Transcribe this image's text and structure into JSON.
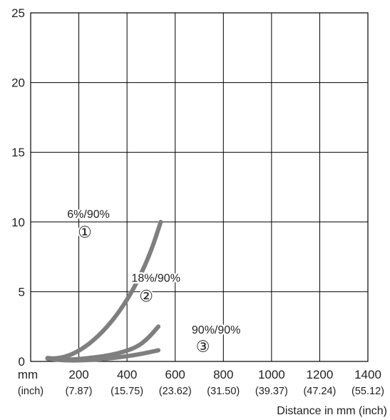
{
  "chart_data": {
    "type": "line",
    "xlabel": "Distance in mm (inch)",
    "ylabel": "",
    "x_unit_label": "mm",
    "x_sub_unit_label": "(inch)",
    "xlim": [
      0,
      1400
    ],
    "ylim": [
      0,
      25
    ],
    "grid": true,
    "x_ticks": [
      {
        "value": 200,
        "label": "200",
        "sublabel": "(7.87)"
      },
      {
        "value": 400,
        "label": "400",
        "sublabel": "(15.75)"
      },
      {
        "value": 600,
        "label": "600",
        "sublabel": "(23.62)"
      },
      {
        "value": 800,
        "label": "800",
        "sublabel": "(31.50)"
      },
      {
        "value": 1000,
        "label": "1000",
        "sublabel": "(39.37)"
      },
      {
        "value": 1200,
        "label": "1200",
        "sublabel": "(47.24)"
      },
      {
        "value": 1400,
        "label": "1400",
        "sublabel": "(55.12)"
      }
    ],
    "y_ticks": [
      {
        "value": 0,
        "label": "0"
      },
      {
        "value": 5,
        "label": "5"
      },
      {
        "value": 10,
        "label": "10"
      },
      {
        "value": 15,
        "label": "15"
      },
      {
        "value": 20,
        "label": "20"
      },
      {
        "value": 25,
        "label": "25"
      }
    ],
    "series": [
      {
        "name": "6%/90%",
        "marker": "①",
        "color": "#7f7f7f",
        "x": [
          70,
          100,
          150,
          200,
          250,
          300,
          350,
          400,
          450,
          500,
          540
        ],
        "y": [
          0.25,
          0.2,
          0.35,
          0.75,
          1.35,
          2.15,
          3.15,
          4.4,
          5.95,
          7.9,
          10.0
        ],
        "label_pos": {
          "x": 240,
          "y": 10.3
        },
        "marker_pos": {
          "x": 225,
          "y": 8.9
        }
      },
      {
        "name": "18%/90%",
        "marker": "②",
        "color": "#7f7f7f",
        "x": [
          70,
          150,
          250,
          350,
          440,
          490,
          530
        ],
        "y": [
          0.2,
          0.1,
          0.25,
          0.5,
          1.0,
          1.7,
          2.5
        ],
        "label_pos": {
          "x": 520,
          "y": 5.7
        },
        "marker_pos": {
          "x": 480,
          "y": 4.3
        }
      },
      {
        "name": "90%/90%",
        "marker": "③",
        "color": "#7f7f7f",
        "x": [
          70,
          150,
          250,
          350,
          450,
          530
        ],
        "y": [
          0.2,
          0.05,
          0.1,
          0.25,
          0.5,
          0.8
        ],
        "label_pos": {
          "x": 770,
          "y": 2.0
        },
        "marker_pos": {
          "x": 715,
          "y": 0.7
        }
      }
    ]
  }
}
